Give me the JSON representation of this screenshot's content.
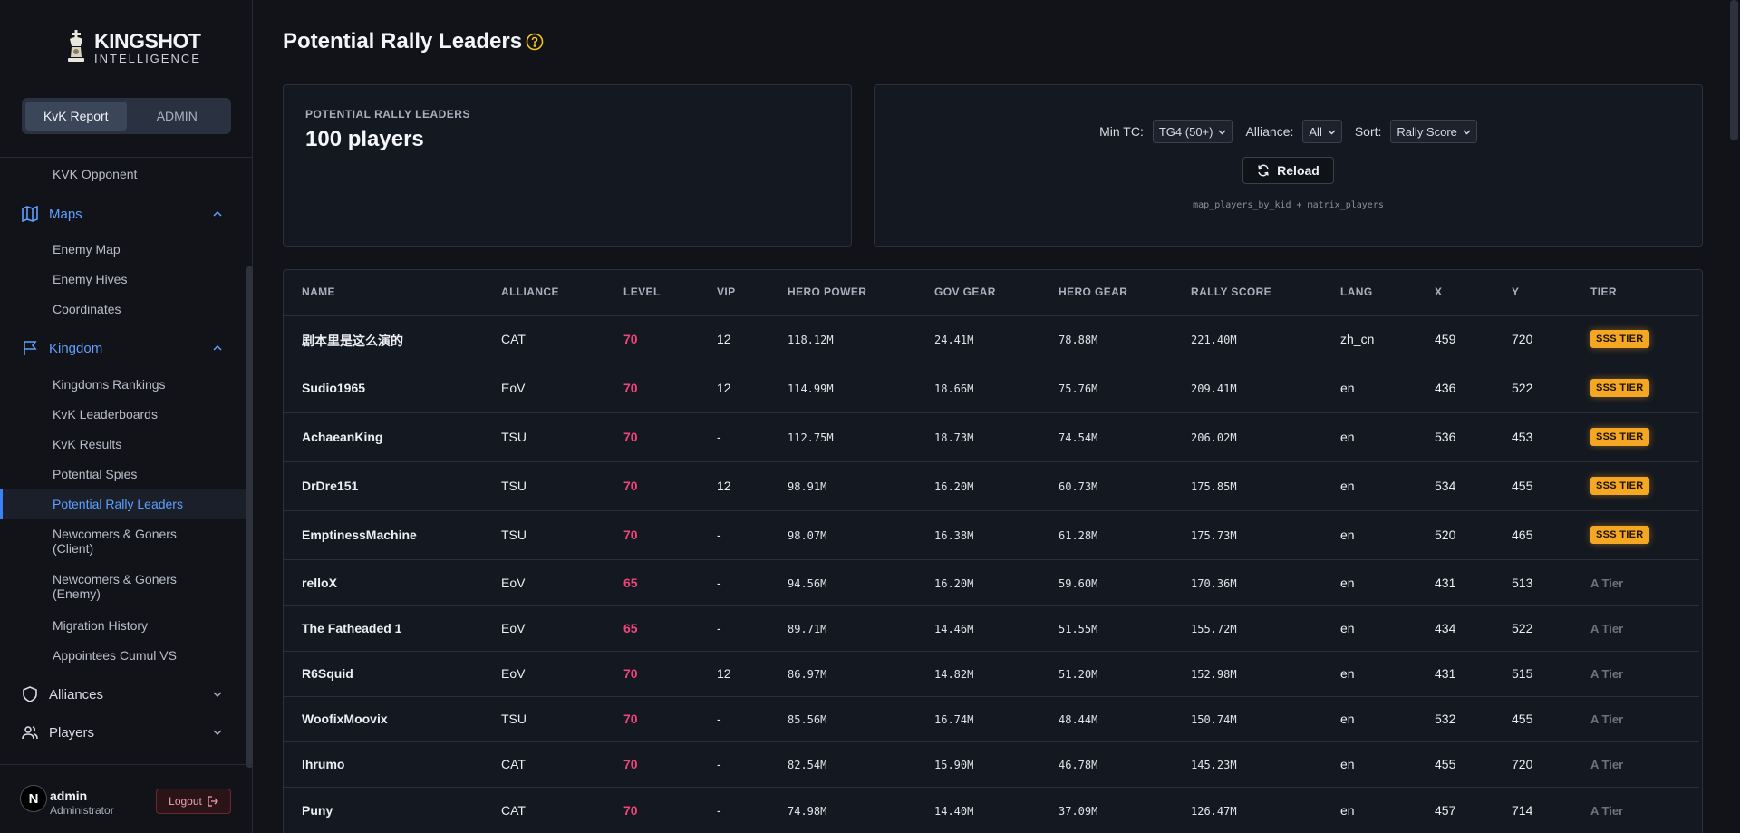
{
  "app": {
    "logo_title": "KINGSHOT",
    "logo_sub": "INTELLIGENCE"
  },
  "segment": {
    "tabs": [
      "KvK Report",
      "ADMIN"
    ]
  },
  "nav": {
    "top_item": "KVK Opponent",
    "maps": {
      "label": "Maps",
      "items": [
        "Enemy Map",
        "Enemy Hives",
        "Coordinates"
      ]
    },
    "kingdom": {
      "label": "Kingdom",
      "items": [
        "Kingdoms Rankings",
        "KvK Leaderboards",
        "KvK Results",
        "Potential Spies",
        "Potential Rally Leaders",
        "Newcomers & Goners (Client)",
        "Newcomers & Goners (Enemy)",
        "Migration History",
        "Appointees Cumul VS"
      ]
    },
    "alliances": "Alliances",
    "players": "Players"
  },
  "user": {
    "avatar_letter": "N",
    "name": "admin",
    "role": "Administrator",
    "logout": "Logout"
  },
  "page": {
    "title": "Potential Rally Leaders"
  },
  "summary": {
    "label": "POTENTIAL RALLY LEADERS",
    "value": "100 players"
  },
  "filters": {
    "min_tc_label": "Min TC:",
    "min_tc_value": "TG4 (50+)",
    "alliance_label": "Alliance:",
    "alliance_value": "All",
    "sort_label": "Sort:",
    "sort_value": "Rally Score",
    "reload": "Reload",
    "source": "map_players_by_kid + matrix_players"
  },
  "table": {
    "headers": [
      "NAME",
      "ALLIANCE",
      "LEVEL",
      "VIP",
      "HERO POWER",
      "GOV GEAR",
      "HERO GEAR",
      "RALLY SCORE",
      "LANG",
      "X",
      "Y",
      "TIER"
    ],
    "rows": [
      {
        "name": "剧本里是这么演的",
        "alliance": "CAT",
        "level": "70",
        "vip": "12",
        "hero_power": "118.12M",
        "gov_gear": "24.41M",
        "hero_gear": "78.88M",
        "rally": "221.40M",
        "lang": "zh_cn",
        "x": "459",
        "y": "720",
        "tier": "SSS TIER"
      },
      {
        "name": "Sudio1965",
        "alliance": "EoV",
        "level": "70",
        "vip": "12",
        "hero_power": "114.99M",
        "gov_gear": "18.66M",
        "hero_gear": "75.76M",
        "rally": "209.41M",
        "lang": "en",
        "x": "436",
        "y": "522",
        "tier": "SSS TIER"
      },
      {
        "name": "AchaeanKing",
        "alliance": "TSU",
        "level": "70",
        "vip": "-",
        "hero_power": "112.75M",
        "gov_gear": "18.73M",
        "hero_gear": "74.54M",
        "rally": "206.02M",
        "lang": "en",
        "x": "536",
        "y": "453",
        "tier": "SSS TIER"
      },
      {
        "name": "DrDre151",
        "alliance": "TSU",
        "level": "70",
        "vip": "12",
        "hero_power": "98.91M",
        "gov_gear": "16.20M",
        "hero_gear": "60.73M",
        "rally": "175.85M",
        "lang": "en",
        "x": "534",
        "y": "455",
        "tier": "SSS TIER"
      },
      {
        "name": "EmptinessMachine",
        "alliance": "TSU",
        "level": "70",
        "vip": "-",
        "hero_power": "98.07M",
        "gov_gear": "16.38M",
        "hero_gear": "61.28M",
        "rally": "175.73M",
        "lang": "en",
        "x": "520",
        "y": "465",
        "tier": "SSS TIER"
      },
      {
        "name": "relloX",
        "alliance": "EoV",
        "level": "65",
        "vip": "-",
        "hero_power": "94.56M",
        "gov_gear": "16.20M",
        "hero_gear": "59.60M",
        "rally": "170.36M",
        "lang": "en",
        "x": "431",
        "y": "513",
        "tier": "A Tier"
      },
      {
        "name": "The Fatheaded 1",
        "alliance": "EoV",
        "level": "65",
        "vip": "-",
        "hero_power": "89.71M",
        "gov_gear": "14.46M",
        "hero_gear": "51.55M",
        "rally": "155.72M",
        "lang": "en",
        "x": "434",
        "y": "522",
        "tier": "A Tier"
      },
      {
        "name": "R6Squid",
        "alliance": "EoV",
        "level": "70",
        "vip": "12",
        "hero_power": "86.97M",
        "gov_gear": "14.82M",
        "hero_gear": "51.20M",
        "rally": "152.98M",
        "lang": "en",
        "x": "431",
        "y": "515",
        "tier": "A Tier"
      },
      {
        "name": "WoofixMoovix",
        "alliance": "TSU",
        "level": "70",
        "vip": "-",
        "hero_power": "85.56M",
        "gov_gear": "16.74M",
        "hero_gear": "48.44M",
        "rally": "150.74M",
        "lang": "en",
        "x": "532",
        "y": "455",
        "tier": "A Tier"
      },
      {
        "name": "Ihrumo",
        "alliance": "CAT",
        "level": "70",
        "vip": "-",
        "hero_power": "82.54M",
        "gov_gear": "15.90M",
        "hero_gear": "46.78M",
        "rally": "145.23M",
        "lang": "en",
        "x": "455",
        "y": "720",
        "tier": "A Tier"
      },
      {
        "name": "Puny",
        "alliance": "CAT",
        "level": "70",
        "vip": "-",
        "hero_power": "74.98M",
        "gov_gear": "14.40M",
        "hero_gear": "37.09M",
        "rally": "126.47M",
        "lang": "en",
        "x": "457",
        "y": "714",
        "tier": "A Tier"
      }
    ]
  },
  "colors": {
    "accent": "#3b82f6",
    "level": "#f0457a",
    "sss_tier": "#f5a623",
    "help": "#f5c518"
  }
}
